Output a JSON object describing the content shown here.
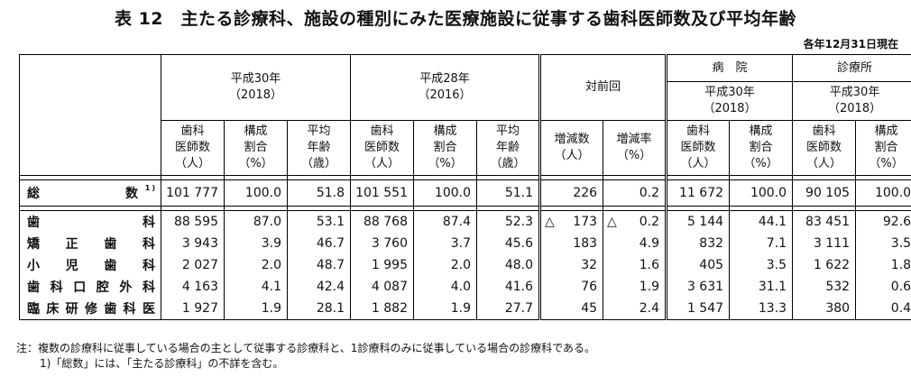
{
  "title": "表 12　主たる診療科、施設の種別にみた医療施設に従事する歯科医師数及び平均年齢",
  "as_of": "各年12月31日現在",
  "header": {
    "year2018": "平成30年",
    "year2018_paren": "（2018）",
    "year2016": "平成28年",
    "year2016_paren": "（2016）",
    "change": "対前回",
    "hospital": "病　院",
    "clinic": "診療所",
    "sub": {
      "dentists": "歯科\n医師数\n（人）",
      "ratio": "構成\n割合\n（%）",
      "age": "平均\n年齢\n（歳）",
      "inc_num": "増減数\n（人）",
      "inc_rate": "増減率\n（%）"
    }
  },
  "total": {
    "label": "総　　　　数",
    "footnote": "1)",
    "values": [
      "101 777",
      "100.0",
      "51.8",
      "101 551",
      "100.0",
      "51.1",
      "226",
      "0.2",
      "11 672",
      "100.0",
      "90 105",
      "100.0"
    ]
  },
  "rows": [
    {
      "label": "歯　　　　科",
      "values": [
        "88 595",
        "87.0",
        "53.1",
        "88 768",
        "87.4",
        "52.3",
        "173",
        "0.2",
        "5 144",
        "44.1",
        "83 451",
        "92.6"
      ],
      "neg": true
    },
    {
      "label": "矯　正　歯　科",
      "values": [
        "3 943",
        "3.9",
        "46.7",
        "3 760",
        "3.7",
        "45.6",
        "183",
        "4.9",
        "832",
        "7.1",
        "3 111",
        "3.5"
      ],
      "neg": false
    },
    {
      "label": "小　児　歯　科",
      "values": [
        "2 027",
        "2.0",
        "48.7",
        "1 995",
        "2.0",
        "48.0",
        "32",
        "1.6",
        "405",
        "3.5",
        "1 622",
        "1.8"
      ],
      "neg": false
    },
    {
      "label": "歯科口腔外科",
      "values": [
        "4 163",
        "4.1",
        "42.4",
        "4 087",
        "4.0",
        "41.6",
        "76",
        "1.9",
        "3 631",
        "31.1",
        "532",
        "0.6"
      ],
      "neg": false
    },
    {
      "label": "臨床研修歯科医",
      "values": [
        "1 927",
        "1.9",
        "28.1",
        "1 882",
        "1.9",
        "27.7",
        "45",
        "2.4",
        "1 547",
        "13.3",
        "380",
        "0.4"
      ],
      "neg": false
    }
  ],
  "neg_mark": "△",
  "notes": [
    "注：複数の診療科に従事している場合の主として従事する診療科と、1診療科のみに従事している場合の診療科である。",
    "1)「総数」には、「主たる診療科」の不詳を含む。"
  ]
}
